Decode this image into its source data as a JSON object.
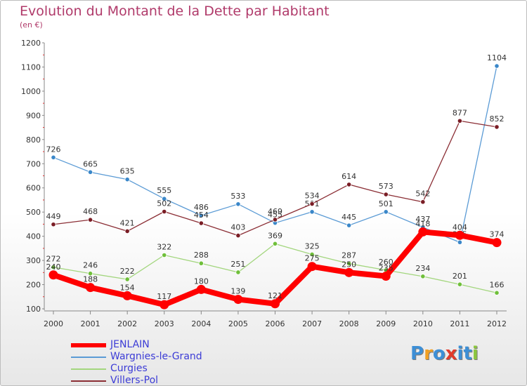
{
  "title": "Evolution du Montant de la Dette par Habitant",
  "subtitle": "(en €)",
  "logo": {
    "text": "Proxiti",
    "letters": [
      {
        "ch": "P",
        "color": "#3d8fd6"
      },
      {
        "ch": "r",
        "color": "#f0a023"
      },
      {
        "ch": "o",
        "color": "#3d8fd6"
      },
      {
        "ch": "x",
        "color": "#e23b2b"
      },
      {
        "ch": "i",
        "color": "#3d8fd6"
      },
      {
        "ch": "t",
        "color": "#3d8fd6"
      },
      {
        "ch": "i",
        "color": "#8cc63f"
      }
    ]
  },
  "chart_data": {
    "type": "line",
    "title": "Evolution du Montant de la Dette par Habitant",
    "subtitle": "(en €)",
    "x": [
      "2000",
      "2001",
      "2002",
      "2003",
      "2004",
      "2005",
      "2006",
      "2007",
      "2008",
      "2009",
      "2010",
      "2011",
      "2012"
    ],
    "y_ticks": [
      100,
      200,
      300,
      400,
      500,
      600,
      700,
      800,
      900,
      1000,
      1100,
      1200
    ],
    "ylim": [
      100,
      1200
    ],
    "grid": false,
    "legend_position": "bottom-left",
    "series": [
      {
        "name": "Wargnies-le-Grand",
        "color": "#5b9bd5",
        "dot": "#3a87c9",
        "values": [
          726,
          665,
          635,
          555,
          486,
          533,
          455,
          501,
          445,
          501,
          437,
          375,
          1104
        ]
      },
      {
        "name": "Curgies",
        "color": "#a3d67e",
        "dot": "#6fbf3a",
        "values": [
          272,
          246,
          222,
          322,
          288,
          251,
          369,
          325,
          287,
          260,
          234,
          201,
          166
        ]
      },
      {
        "name": "Villers-Pol",
        "color": "#8b2e35",
        "dot": "#7a1d25",
        "values": [
          449,
          468,
          421,
          502,
          454,
          403,
          469,
          534,
          614,
          573,
          542,
          877,
          852
        ]
      },
      {
        "name": "JENLAIN",
        "color": "#ff0000",
        "dot": "#ff0000",
        "values": [
          240,
          188,
          154,
          117,
          180,
          139,
          121,
          275,
          250,
          235,
          418,
          404,
          374
        ]
      }
    ]
  }
}
